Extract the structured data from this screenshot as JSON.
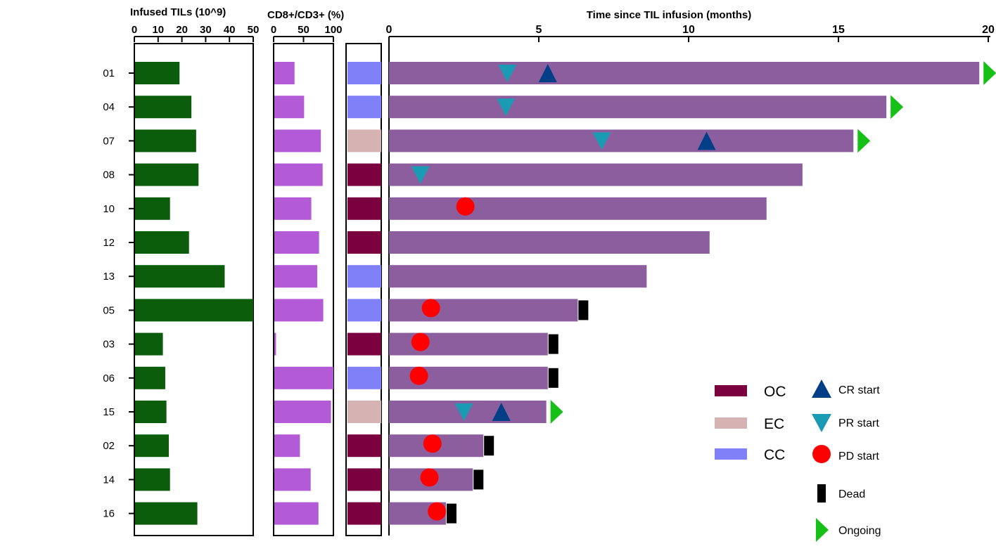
{
  "chart_data": {
    "type": "bar",
    "patients": [
      "01",
      "04",
      "07",
      "08",
      "10",
      "12",
      "13",
      "05",
      "03",
      "06",
      "15",
      "02",
      "14",
      "16"
    ],
    "til_panel": {
      "title": "Infused TILs (10^9)",
      "xlim": [
        0,
        50
      ],
      "ticks": [
        "0",
        "10",
        "20",
        "30",
        "40",
        "50"
      ],
      "tick_values": [
        0,
        10,
        20,
        30,
        40,
        50
      ],
      "color": "#0b5d0b",
      "values": [
        19,
        24,
        26,
        27,
        15,
        23,
        38,
        50,
        12,
        13,
        13.5,
        14.5,
        15,
        26.5
      ]
    },
    "cd8_panel": {
      "title": "CD8+/CD3+ (%)",
      "xlim": [
        0,
        100
      ],
      "ticks": [
        "0",
        "50",
        "100"
      ],
      "tick_values": [
        0,
        50,
        100
      ],
      "color": "#b35ad6",
      "values": [
        35,
        51,
        79,
        82,
        63,
        76,
        73,
        83,
        4,
        100,
        96,
        44,
        62,
        75
      ]
    },
    "cancer_type": {
      "values": [
        "CC",
        "CC",
        "EC",
        "OC",
        "OC",
        "OC",
        "CC",
        "CC",
        "OC",
        "CC",
        "EC",
        "OC",
        "OC",
        "OC"
      ],
      "colors": {
        "OC": "#7b0040",
        "EC": "#d6b3b3",
        "CC": "#8080f8"
      }
    },
    "timeline": {
      "title": "Time since TIL infusion (months)",
      "xlim": [
        0,
        20
      ],
      "ticks": [
        "0",
        "5",
        "10",
        "15",
        "20"
      ],
      "tick_values": [
        0,
        5,
        10,
        15,
        20
      ],
      "bar_color": "#8d5e9e",
      "durations": [
        19.7,
        16.6,
        15.5,
        13.8,
        12.6,
        10.7,
        8.6,
        6.3,
        5.3,
        5.3,
        5.25,
        3.15,
        2.8,
        1.9
      ],
      "outcomes": [
        "Ongoing",
        "Ongoing",
        "Ongoing",
        "",
        "",
        "",
        "",
        "Dead",
        "Dead",
        "Dead",
        "Ongoing",
        "Dead",
        "Dead",
        "Dead"
      ],
      "pr_start": [
        3.95,
        3.9,
        7.1,
        1.05,
        null,
        null,
        null,
        null,
        null,
        null,
        2.5,
        null,
        null,
        null
      ],
      "cr_start": [
        5.3,
        null,
        10.6,
        null,
        null,
        null,
        null,
        null,
        null,
        null,
        3.75,
        null,
        null,
        null
      ],
      "pd_start": [
        null,
        null,
        null,
        null,
        2.55,
        null,
        null,
        1.4,
        1.05,
        1.0,
        null,
        1.45,
        1.35,
        1.6
      ]
    },
    "legend": {
      "types": [
        {
          "label": "OC",
          "color": "#7b0040"
        },
        {
          "label": "EC",
          "color": "#d6b3b3"
        },
        {
          "label": "CC",
          "color": "#8080f8"
        }
      ],
      "events": [
        {
          "label": "CR start",
          "color": "#003f87",
          "shape": "triangle-up"
        },
        {
          "label": "PR start",
          "color": "#1b9bb3",
          "shape": "triangle-down"
        },
        {
          "label": "PD start",
          "color": "#ff0000",
          "shape": "circle"
        },
        {
          "label": "Dead",
          "color": "#000000",
          "shape": "rect"
        },
        {
          "label": "Ongoing",
          "color": "#16c016",
          "shape": "triangle-right"
        }
      ]
    }
  }
}
